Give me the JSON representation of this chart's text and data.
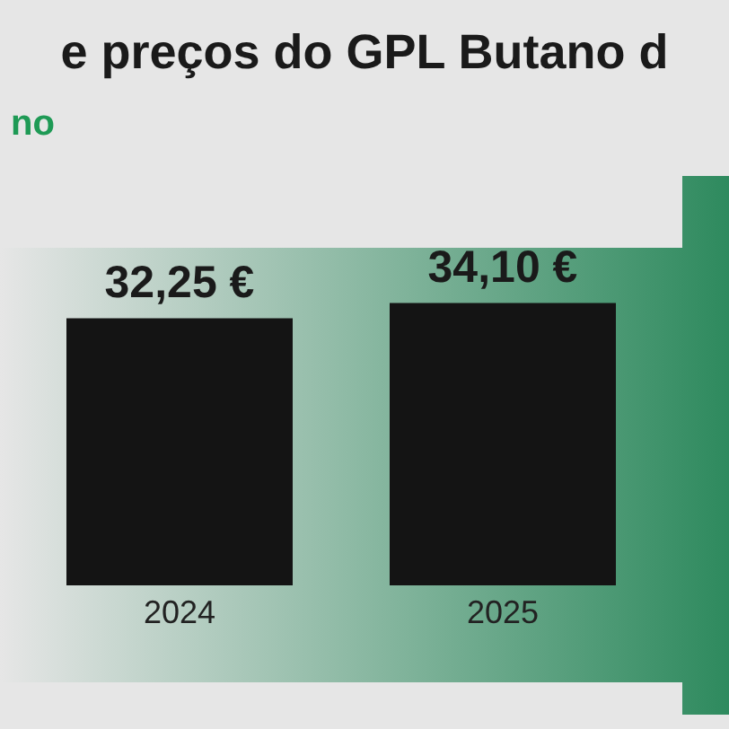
{
  "chart_data": {
    "type": "bar",
    "title": "e preços do GPL Butano d",
    "subtitle": "no",
    "categories": [
      "2024",
      "2025"
    ],
    "series": [
      {
        "color": "#141414",
        "values": [
          32.25,
          34.1
        ],
        "value_labels": [
          "32,25 €",
          "34,10 €"
        ]
      }
    ],
    "tick_labels": "x",
    "grid": false
  }
}
